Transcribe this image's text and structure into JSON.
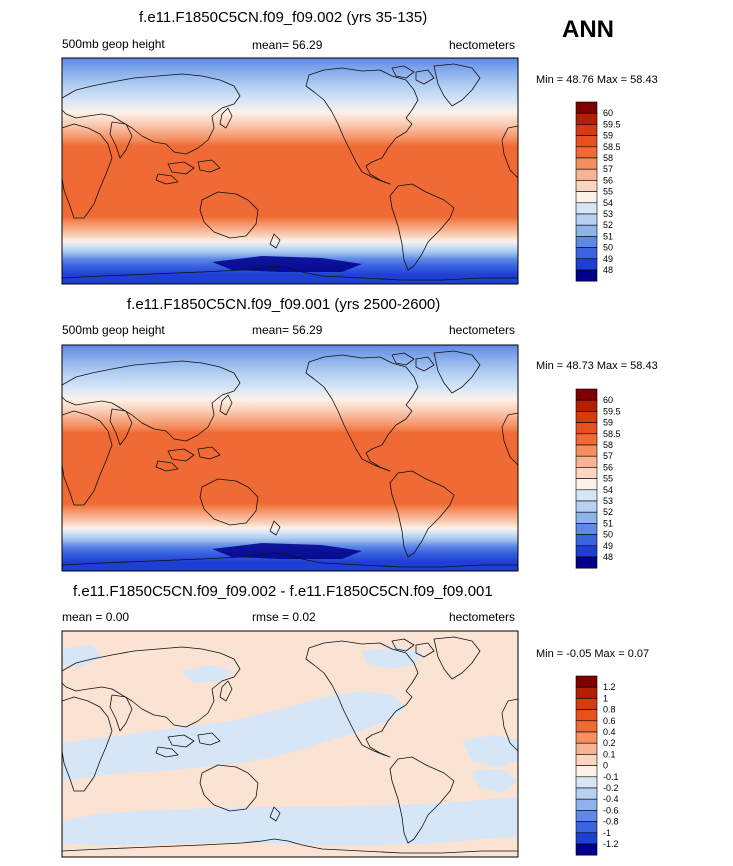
{
  "season_label": "ANN",
  "panels": [
    {
      "title": "f.e11.F1850C5CN.f09_f09.002 (yrs 35-135)",
      "left_label": "500mb geop height",
      "center_label": "mean=  56.29",
      "right_label": "hectometers",
      "minmax": "Min =  48.76 Max =  58.43"
    },
    {
      "title": "f.e11.F1850C5CN.f09_f09.001 (yrs 2500-2600)",
      "left_label": "500mb geop height",
      "center_label": "mean=  56.29",
      "right_label": "hectometers",
      "minmax": "Min =  48.73 Max =  58.43"
    },
    {
      "title": "f.e11.F1850C5CN.f09_f09.002 - f.e11.F1850C5CN.f09_f09.001",
      "left_label": "mean =   0.00",
      "center_label": "rmse =   0.02",
      "right_label": "hectometers",
      "minmax": "Min =  -0.05 Max =   0.07"
    }
  ],
  "colorbars": {
    "field": {
      "labels": [
        "60",
        "59.5",
        "59",
        "58.5",
        "58",
        "57",
        "56",
        "55",
        "54",
        "53",
        "52",
        "51",
        "50",
        "49",
        "48"
      ],
      "colors": [
        "#7f0000",
        "#b51e00",
        "#d63a13",
        "#e8501e",
        "#ef6a34",
        "#f58f5f",
        "#f8b394",
        "#fbd5c0",
        "#fdf2e8",
        "#d6e6f7",
        "#b6d1f2",
        "#8fb3ec",
        "#5f89e6",
        "#3a63e0",
        "#1e3fd4",
        "#00008a"
      ]
    },
    "diff": {
      "labels": [
        "1.2",
        "1",
        "0.8",
        "0.6",
        "0.4",
        "0.2",
        "0.1",
        "0",
        "-0.1",
        "-0.2",
        "-0.4",
        "-0.6",
        "-0.8",
        "-1",
        "-1.2"
      ],
      "colors": [
        "#7f0000",
        "#b51e00",
        "#d63a13",
        "#e8501e",
        "#ef6a34",
        "#f58f5f",
        "#f8b394",
        "#fbd5c0",
        "#fdf2e8",
        "#d6e6f7",
        "#b6d1f2",
        "#8fb3ec",
        "#5f89e6",
        "#3a63e0",
        "#1e3fd4",
        "#00008a"
      ]
    }
  }
}
